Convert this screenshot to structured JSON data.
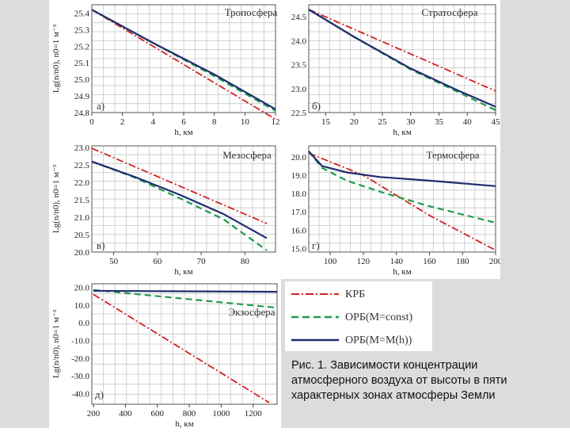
{
  "colors": {
    "krb": "#d42020",
    "orb_const": "#1e9a4a",
    "orb_h": "#1f2d6e"
  },
  "legend": [
    {
      "label": "КРБ",
      "style": "dashdot",
      "color": "#d42020"
    },
    {
      "label": "ОРБ(M=const)",
      "style": "dash",
      "color": "#1e9a4a"
    },
    {
      "label": "ОРБ(M=M(h))",
      "style": "solid",
      "color": "#1f2d6e"
    }
  ],
  "caption": "Рис. 1. Зависимости концентрации атмосферного воздуха от высоты в пяти характерных зонах атмосферы Земли",
  "chart_data": [
    {
      "id": "a",
      "type": "line",
      "title": "Тропосфера",
      "panel_label": "а)",
      "ylabel": "Lg(n/n0), n0=1 м⁻³",
      "xlabel": "h, км",
      "xlim": [
        0,
        12
      ],
      "ylim": [
        24.8,
        25.45
      ],
      "xticks": [
        "0",
        "2",
        "4",
        "6",
        "8",
        "10",
        "12"
      ],
      "yticks": [
        "24.8",
        "24.9",
        "25.0",
        "25.1",
        "25.2",
        "25.3",
        "25.4"
      ],
      "series": [
        {
          "name": "КРБ",
          "x": [
            0,
            12
          ],
          "y": [
            25.42,
            24.76
          ]
        },
        {
          "name": "ОРБ(M=const)",
          "x": [
            0,
            4,
            8,
            12
          ],
          "y": [
            25.42,
            25.22,
            25.02,
            24.81
          ]
        },
        {
          "name": "ОРБ(M=M(h))",
          "x": [
            0,
            4,
            8,
            12
          ],
          "y": [
            25.42,
            25.22,
            25.03,
            24.82
          ]
        }
      ]
    },
    {
      "id": "b",
      "type": "line",
      "title": "Стратосфера",
      "panel_label": "б)",
      "ylabel": "",
      "xlabel": "h, км",
      "xlim": [
        12,
        45
      ],
      "ylim": [
        22.5,
        24.75
      ],
      "xticks": [
        "15",
        "20",
        "25",
        "30",
        "35",
        "40",
        "45"
      ],
      "yticks": [
        "22.5",
        "23.0",
        "23.5",
        "24.0",
        "24.5"
      ],
      "series": [
        {
          "name": "КРБ",
          "x": [
            12,
            45
          ],
          "y": [
            24.65,
            22.95
          ]
        },
        {
          "name": "ОРБ(M=const)",
          "x": [
            12,
            20,
            30,
            38,
            45
          ],
          "y": [
            24.65,
            24.08,
            23.4,
            22.95,
            22.55
          ]
        },
        {
          "name": "ОРБ(M=M(h))",
          "x": [
            12,
            20,
            30,
            38,
            45
          ],
          "y": [
            24.65,
            24.08,
            23.42,
            22.98,
            22.62
          ]
        }
      ]
    },
    {
      "id": "c",
      "type": "line",
      "title": "Мезосфера",
      "panel_label": "в)",
      "ylabel": "Lg(n/n0), n0=1 м⁻³",
      "xlabel": "h, км",
      "xlim": [
        45,
        87
      ],
      "ylim": [
        20.0,
        23.05
      ],
      "xticks": [
        "50",
        "60",
        "70",
        "80"
      ],
      "yticks": [
        "20.0",
        "20.5",
        "21.0",
        "21.5",
        "22.0",
        "22.5",
        "23.0"
      ],
      "series": [
        {
          "name": "КРБ",
          "x": [
            45,
            85
          ],
          "y": [
            22.98,
            20.82
          ]
        },
        {
          "name": "ОРБ(M=const)",
          "x": [
            45,
            55,
            65,
            75,
            85
          ],
          "y": [
            22.6,
            22.13,
            21.55,
            20.95,
            20.05
          ]
        },
        {
          "name": "ОРБ(M=M(h))",
          "x": [
            45,
            55,
            65,
            75,
            85
          ],
          "y": [
            22.6,
            22.15,
            21.65,
            21.1,
            20.4
          ]
        }
      ]
    },
    {
      "id": "d",
      "type": "line",
      "title": "Термосфера",
      "panel_label": "г)",
      "ylabel": "",
      "xlabel": "h, км",
      "xlim": [
        87,
        200
      ],
      "ylim": [
        14.8,
        20.6
      ],
      "xticks": [
        "100",
        "120",
        "140",
        "160",
        "180",
        "200"
      ],
      "yticks": [
        "15.0",
        "16.0",
        "17.0",
        "18.0",
        "19.0",
        "20.0"
      ],
      "series": [
        {
          "name": "КРБ",
          "x": [
            87,
            120,
            160,
            200
          ],
          "y": [
            20.2,
            19.0,
            16.8,
            14.9
          ]
        },
        {
          "name": "ОРБ(M=const)",
          "x": [
            87,
            95,
            110,
            130,
            160,
            200
          ],
          "y": [
            20.3,
            19.4,
            18.7,
            18.1,
            17.3,
            16.4
          ]
        },
        {
          "name": "ОРБ(M=M(h))",
          "x": [
            87,
            95,
            110,
            130,
            160,
            200
          ],
          "y": [
            20.3,
            19.5,
            19.15,
            18.9,
            18.7,
            18.4
          ]
        }
      ]
    },
    {
      "id": "e",
      "type": "line",
      "title": "Экзосфера",
      "panel_label": "д)",
      "ylabel": "Lg(n/n0), n0=1 м⁻³",
      "xlabel": "h, км",
      "xlim": [
        190,
        1350
      ],
      "ylim": [
        -46,
        22
      ],
      "xticks": [
        "200",
        "400",
        "600",
        "800",
        "1000",
        "1200"
      ],
      "yticks": [
        "20.0",
        "10.0",
        "0.0",
        "-10.0",
        "-20.0",
        "-30.0",
        "-40.0"
      ],
      "series": [
        {
          "name": "КРБ",
          "x": [
            200,
            1300
          ],
          "y": [
            16.0,
            -45.0
          ]
        },
        {
          "name": "ОРБ(M=const)",
          "x": [
            200,
            1350
          ],
          "y": [
            18.5,
            8.5
          ]
        },
        {
          "name": "ОРБ(M=M(h))",
          "x": [
            200,
            1350
          ],
          "y": [
            18.0,
            17.5
          ]
        }
      ]
    }
  ]
}
